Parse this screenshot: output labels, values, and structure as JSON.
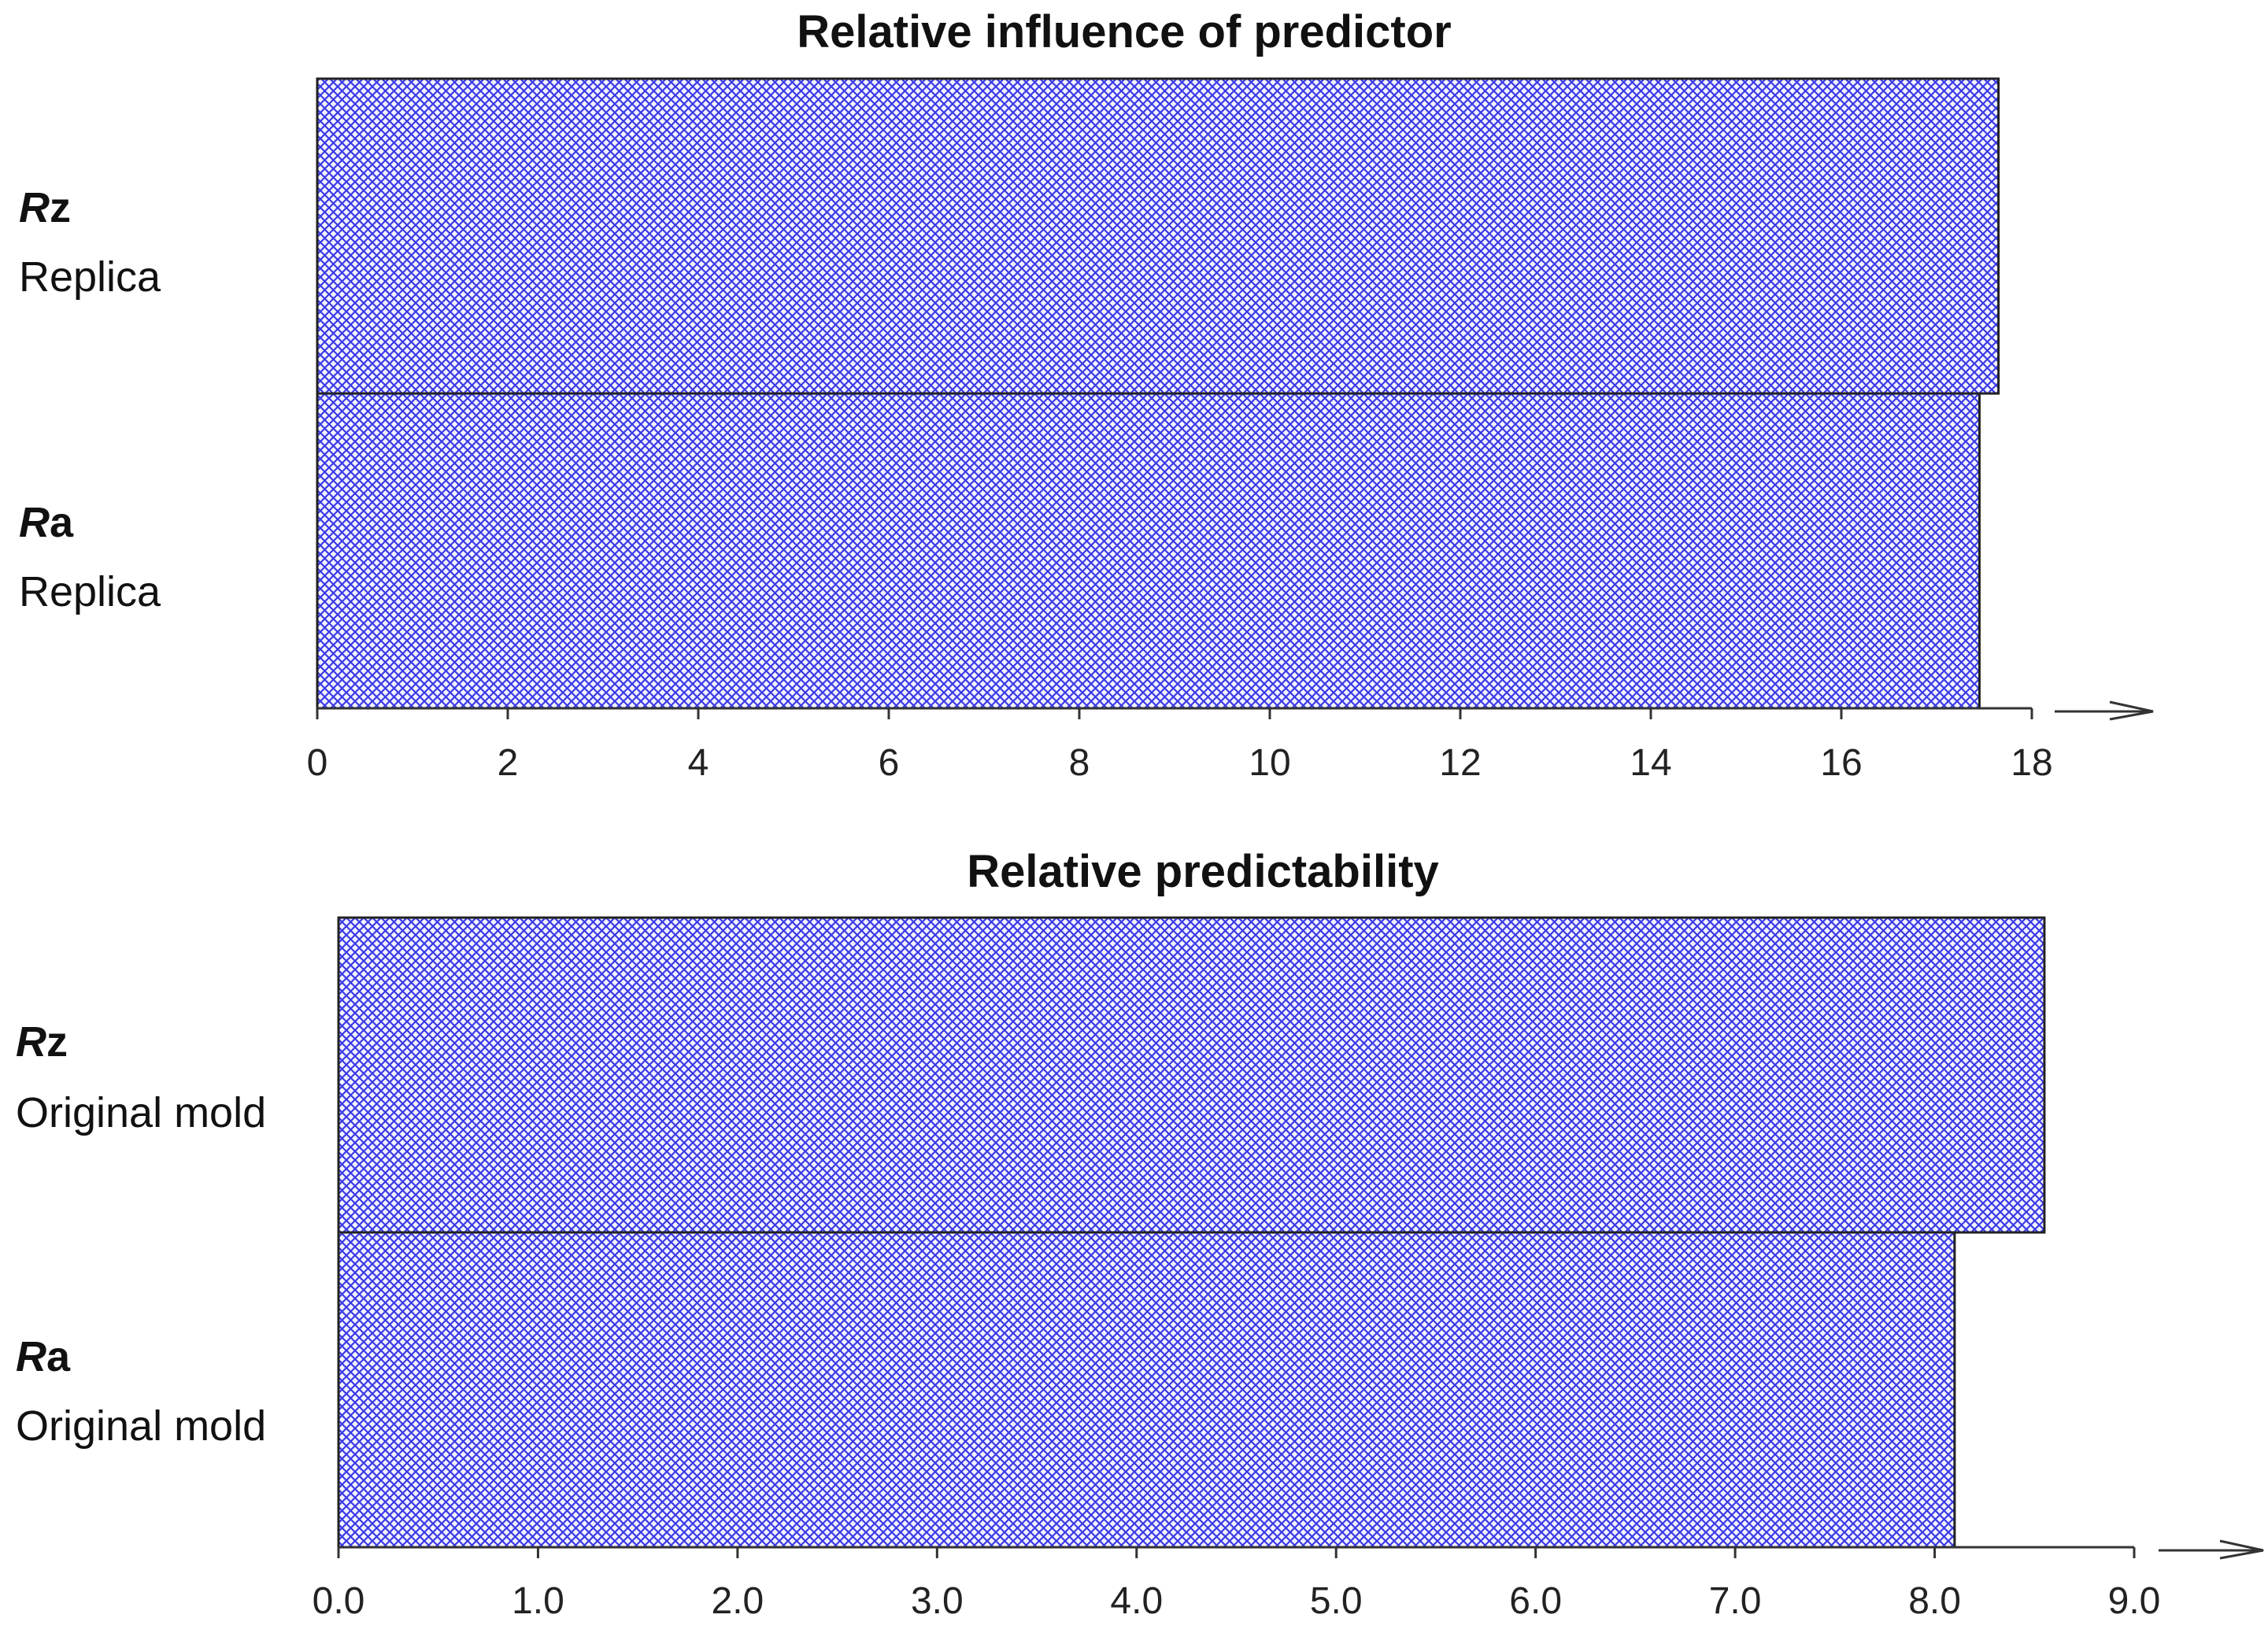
{
  "chart_data": [
    {
      "type": "bar",
      "orientation": "horizontal",
      "title": "Relative influence of predictor",
      "categories": [
        {
          "var_main": "R",
          "var_sub": "z",
          "label": "Replica"
        },
        {
          "var_main": "R",
          "var_sub": "a",
          "label": "Replica"
        }
      ],
      "values": [
        17.65,
        17.45
      ],
      "xlim": [
        0,
        18
      ],
      "ticks": [
        0,
        2,
        4,
        6,
        8,
        10,
        12,
        14,
        16,
        18
      ],
      "tick_labels": [
        "0",
        "2",
        "4",
        "6",
        "8",
        "10",
        "12",
        "14",
        "16",
        "18"
      ],
      "xlabel": "",
      "ylabel": "",
      "grid": false,
      "bar_fill": "crosshatch",
      "bar_color": "#3a3ae6",
      "axis_arrow": true
    },
    {
      "type": "bar",
      "orientation": "horizontal",
      "title": "Relative predictability",
      "categories": [
        {
          "var_main": "R",
          "var_sub": "z",
          "label": "Original mold"
        },
        {
          "var_main": "R",
          "var_sub": "a",
          "label": "Original mold"
        }
      ],
      "values": [
        8.55,
        8.1
      ],
      "xlim": [
        0,
        9
      ],
      "ticks": [
        0,
        1,
        2,
        3,
        4,
        5,
        6,
        7,
        8,
        9
      ],
      "tick_labels": [
        "0.0",
        "1.0",
        "2.0",
        "3.0",
        "4.0",
        "5.0",
        "6.0",
        "7.0",
        "8.0",
        "9.0"
      ],
      "xlabel": "",
      "ylabel": "",
      "grid": false,
      "bar_fill": "crosshatch",
      "bar_color": "#3a3ae6",
      "axis_arrow": true
    }
  ]
}
